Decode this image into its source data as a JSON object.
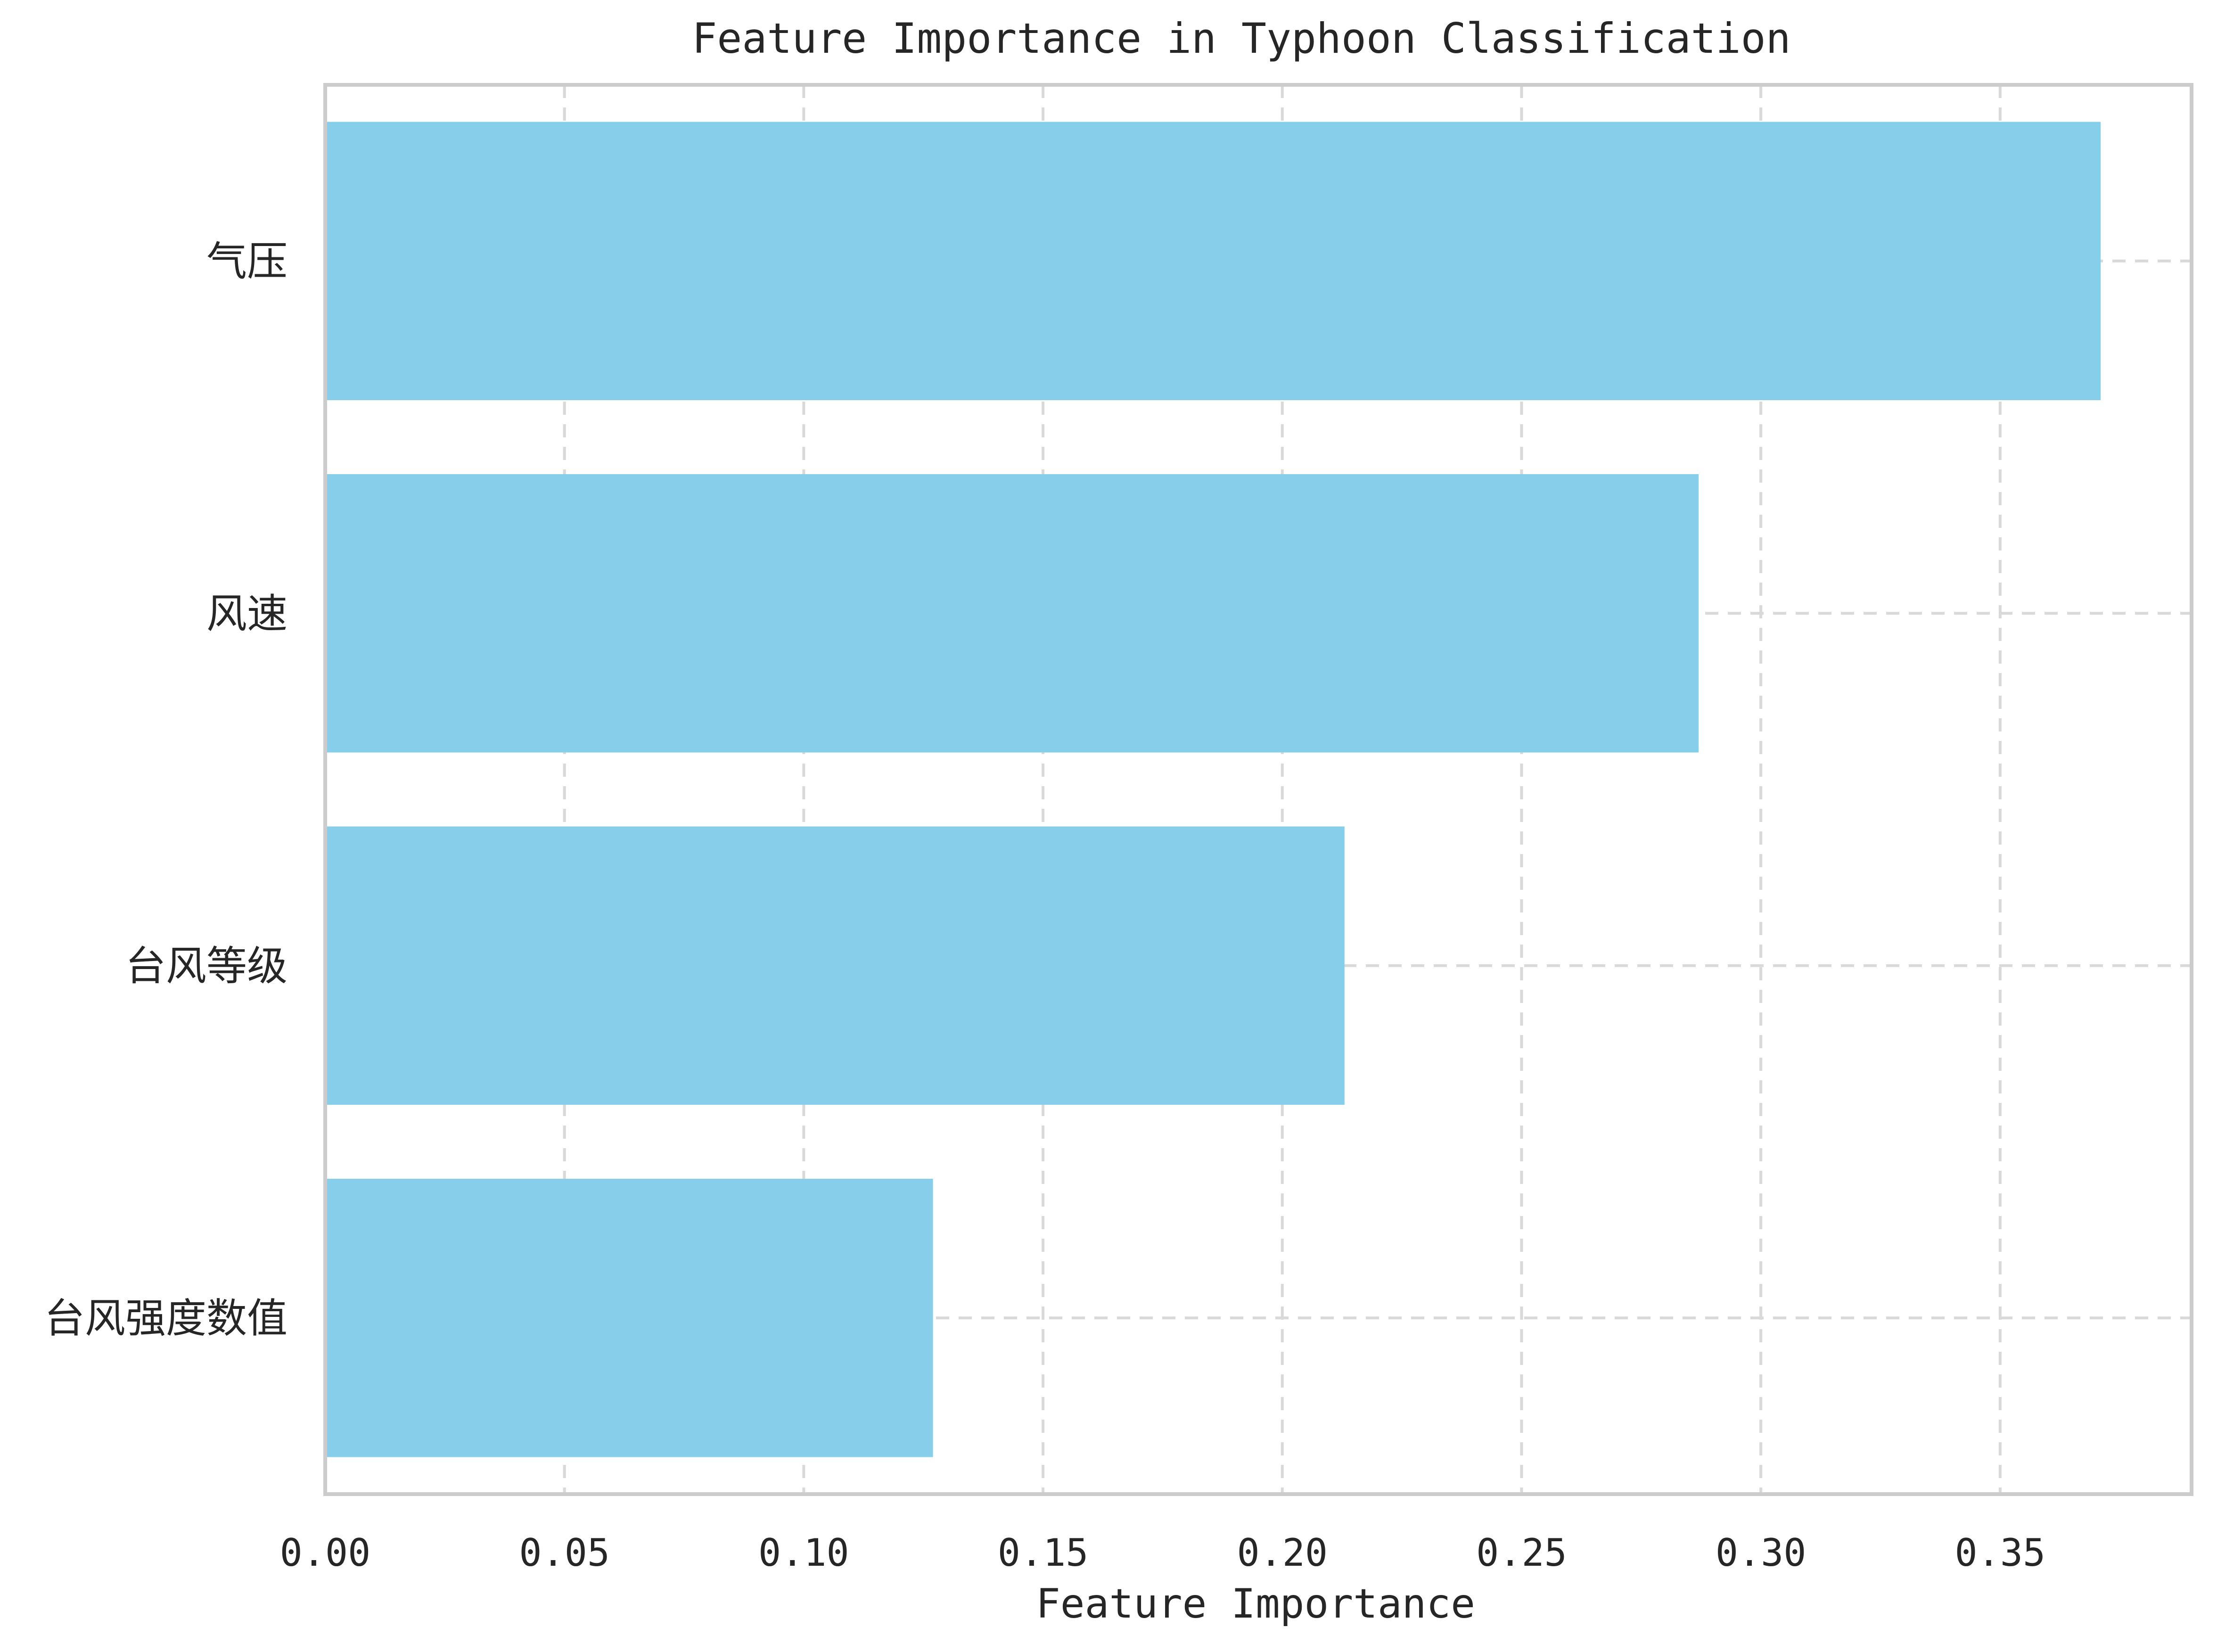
{
  "chart_data": {
    "type": "bar",
    "orientation": "horizontal",
    "title": "Feature Importance in Typhoon Classification",
    "xlabel": "Feature Importance",
    "ylabel": "",
    "categories": [
      "气压",
      "风速",
      "台风等级",
      "台风强度数值"
    ],
    "values": [
      0.371,
      0.287,
      0.213,
      0.127
    ],
    "xlim": [
      0,
      0.39
    ],
    "xticks": [
      0.0,
      0.05,
      0.1,
      0.15,
      0.2,
      0.25,
      0.3,
      0.35
    ],
    "xtick_labels": [
      "0.00",
      "0.05",
      "0.10",
      "0.15",
      "0.20",
      "0.25",
      "0.30",
      "0.35"
    ],
    "grid": true,
    "grid_style": "dashed",
    "legend": "none",
    "colors": {
      "bar": "#87ceeb",
      "grid": "#d9d9d9",
      "spine": "#cccccc",
      "text": "#262626"
    }
  }
}
